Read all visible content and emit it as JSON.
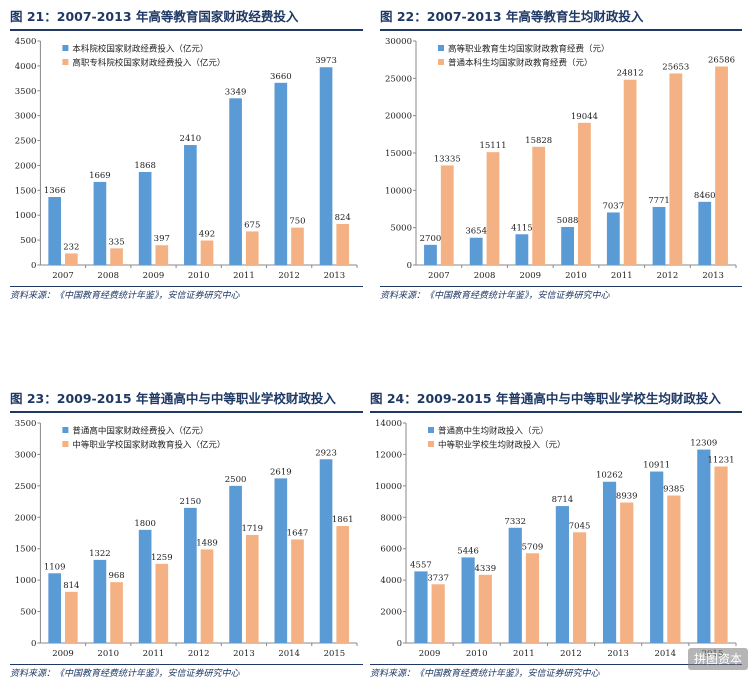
{
  "source_text": "资料来源：《中国教育经费统计年鉴》，安信证券研究中心",
  "watermark": "拼图资本",
  "colors": {
    "blue": "#5b9bd5",
    "orange": "#f4b183",
    "title": "#1f3864"
  },
  "chart_data": [
    {
      "id": "p21",
      "type": "bar",
      "title": "图 21：2007-2013 年高等教育国家财政经费投入",
      "categories": [
        "2007",
        "2008",
        "2009",
        "2010",
        "2011",
        "2012",
        "2013"
      ],
      "ylim": [
        0,
        4500
      ],
      "yticks": [
        0,
        500,
        1000,
        1500,
        2000,
        2500,
        3000,
        3500,
        4000,
        4500
      ],
      "series": [
        {
          "name": "本科院校国家财政经费投入（亿元）",
          "values": [
            1366,
            1669,
            1868,
            2410,
            3349,
            3660,
            3973
          ],
          "color": "#5b9bd5"
        },
        {
          "name": "高职专科院校国家财政经费投入（亿元）",
          "values": [
            232,
            335,
            397,
            492,
            675,
            750,
            824
          ],
          "color": "#f4b183"
        }
      ]
    },
    {
      "id": "p22",
      "type": "bar",
      "title": "图 22：2007-2013 年高等教育生均财政投入",
      "categories": [
        "2007",
        "2008",
        "2009",
        "2010",
        "2011",
        "2012",
        "2013"
      ],
      "ylim": [
        0,
        30000
      ],
      "yticks": [
        0,
        5000,
        10000,
        15000,
        20000,
        25000,
        30000
      ],
      "series": [
        {
          "name": "高等职业教育生均国家财政教育经费（元）",
          "values": [
            2700,
            3654,
            4115,
            5088,
            7037,
            7771,
            8460
          ],
          "color": "#5b9bd5"
        },
        {
          "name": "普通本科生均国家财政教育经费（元）",
          "values": [
            13335,
            15111,
            15828,
            19044,
            24812,
            25653,
            26586
          ],
          "color": "#f4b183"
        }
      ]
    },
    {
      "id": "p23",
      "type": "bar",
      "title": "图 23：2009-2015 年普通高中与中等职业学校财政投入",
      "categories": [
        "2009",
        "2010",
        "2011",
        "2012",
        "2013",
        "2014",
        "2015"
      ],
      "ylim": [
        0,
        3500
      ],
      "yticks": [
        0,
        500,
        1000,
        1500,
        2000,
        2500,
        3000,
        3500
      ],
      "series": [
        {
          "name": "普通高中国家财政经费投入（亿元）",
          "values": [
            1109,
            1322,
            1800,
            2150,
            2500,
            2619,
            2923
          ],
          "color": "#5b9bd5"
        },
        {
          "name": "中等职业学校国家财政教育投入（亿元）",
          "values": [
            814,
            968,
            1259,
            1489,
            1719,
            1647,
            1861
          ],
          "color": "#f4b183"
        }
      ]
    },
    {
      "id": "p24",
      "type": "bar",
      "title": "图 24：2009-2015 年普通高中与中等职业学校生均财政投入",
      "categories": [
        "2009",
        "2010",
        "2011",
        "2012",
        "2013",
        "2014",
        "2015"
      ],
      "ylim": [
        0,
        14000
      ],
      "yticks": [
        0,
        2000,
        4000,
        6000,
        8000,
        10000,
        12000,
        14000
      ],
      "series": [
        {
          "name": "普通高中生均财政投入（元）",
          "values": [
            4557,
            5446,
            7332,
            8714,
            10262,
            10911,
            12309
          ],
          "color": "#5b9bd5"
        },
        {
          "name": "中等职业学校生均财政投入（元）",
          "values": [
            3737,
            4339,
            5709,
            7045,
            8939,
            9385,
            11231
          ],
          "color": "#f4b183"
        }
      ]
    }
  ]
}
